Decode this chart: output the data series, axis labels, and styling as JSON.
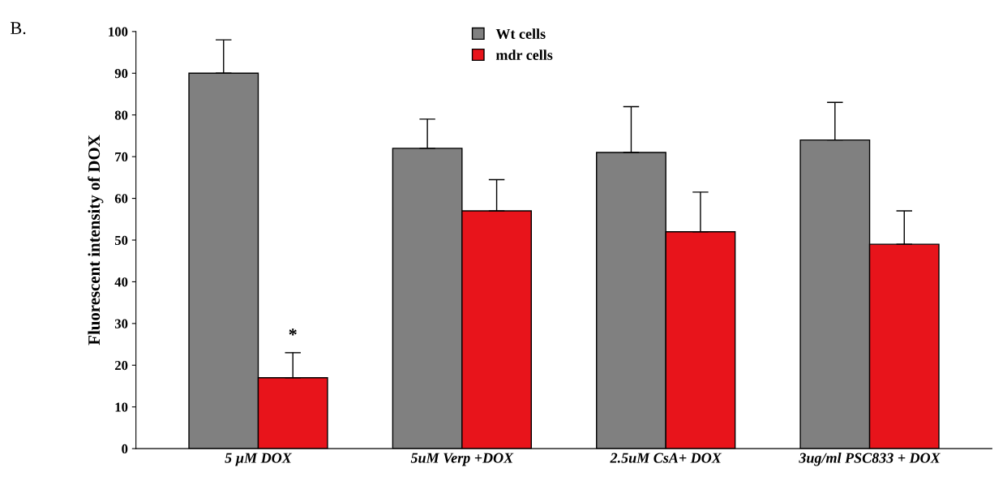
{
  "chart_data": {
    "type": "bar",
    "ylabel": "Fluorescent intensity of DOX",
    "categories": [
      "5 µM DOX",
      "5uM Verp +DOX",
      "2.5uM CsA+ DOX",
      "3ug/ml PSC833 + DOX"
    ],
    "series": [
      {
        "name": "Wt cells",
        "color": "#808080",
        "values": [
          90,
          72,
          71,
          74
        ],
        "errors": [
          [
            90,
            98
          ],
          [
            72,
            79
          ],
          [
            71,
            82
          ],
          [
            74,
            83
          ]
        ]
      },
      {
        "name": "mdr cells",
        "color": "#e8141b",
        "values": [
          17,
          57,
          52,
          49
        ],
        "errors": [
          [
            17,
            23
          ],
          [
            57,
            64.5
          ],
          [
            52,
            61.5
          ],
          [
            49,
            57
          ]
        ]
      }
    ],
    "ylim": [
      0,
      100
    ],
    "yticks": [
      0,
      10,
      20,
      30,
      40,
      50,
      60,
      70,
      80,
      90,
      100
    ],
    "annotations": [
      "B.",
      {
        "text": "*",
        "x": "5 µM DOX",
        "y": 25
      }
    ],
    "legend": "top",
    "grid": false
  }
}
